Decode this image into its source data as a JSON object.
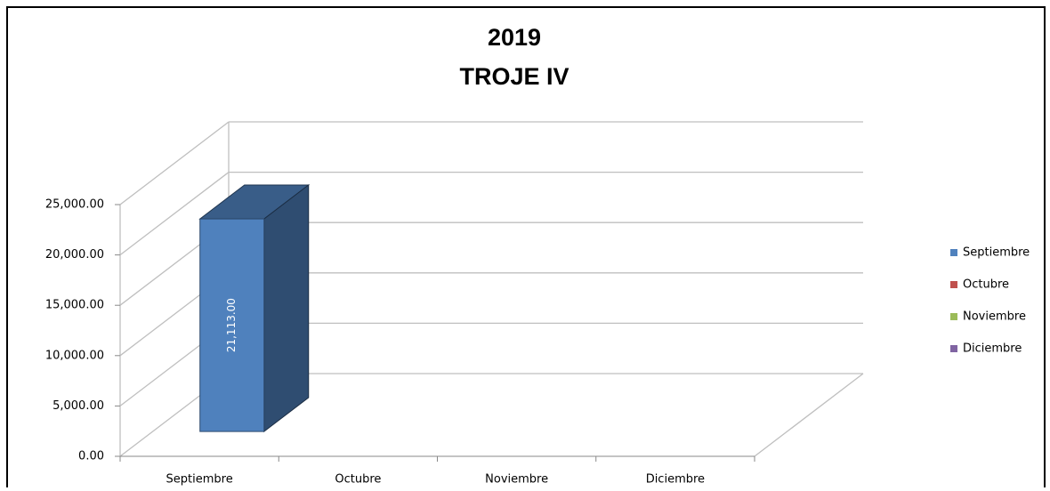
{
  "chart_data": {
    "type": "bar",
    "title": "2019",
    "subtitle": "TROJE IV",
    "categories": [
      "Septiembre",
      "Octubre",
      "Noviembre",
      "Diciembre"
    ],
    "values": [
      21113,
      null,
      null,
      null
    ],
    "value_labels": [
      "21,113.00",
      null,
      null,
      null
    ],
    "colors": [
      "#4f81bd",
      "#c0504d",
      "#9bbb59",
      "#8064a2"
    ],
    "ylim": [
      0,
      25000
    ],
    "yticks": [
      {
        "value": 0,
        "label": "0.00"
      },
      {
        "value": 5000,
        "label": "5,000.00"
      },
      {
        "value": 10000,
        "label": "10,000.00"
      },
      {
        "value": 15000,
        "label": "15,000.00"
      },
      {
        "value": 20000,
        "label": "20,000.00"
      },
      {
        "value": 25000,
        "label": "25,000.00"
      }
    ],
    "grid": true,
    "legend": "right"
  }
}
